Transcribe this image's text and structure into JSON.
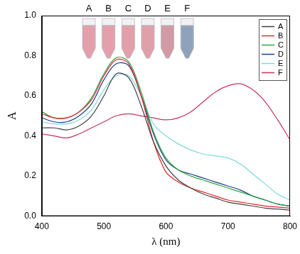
{
  "chart_data": {
    "type": "line",
    "x_label": "λ (nm)",
    "y_label": "A",
    "x": [
      400,
      420,
      440,
      460,
      480,
      500,
      520,
      540,
      560,
      580,
      600,
      620,
      640,
      660,
      680,
      700,
      720,
      740,
      760,
      780,
      800
    ],
    "series": [
      {
        "name": "A",
        "color": "#404040",
        "values": [
          0.44,
          0.44,
          0.43,
          0.45,
          0.5,
          0.6,
          0.71,
          0.69,
          0.55,
          0.37,
          0.25,
          0.18,
          0.14,
          0.11,
          0.09,
          0.07,
          0.06,
          0.05,
          0.04,
          0.035,
          0.03
        ]
      },
      {
        "name": "B",
        "color": "#e8262a",
        "values": [
          0.51,
          0.49,
          0.49,
          0.52,
          0.58,
          0.7,
          0.78,
          0.76,
          0.6,
          0.37,
          0.22,
          0.17,
          0.14,
          0.12,
          0.1,
          0.08,
          0.07,
          0.06,
          0.05,
          0.045,
          0.04
        ]
      },
      {
        "name": "C",
        "color": "#2aa640",
        "values": [
          0.52,
          0.49,
          0.49,
          0.52,
          0.59,
          0.71,
          0.79,
          0.77,
          0.62,
          0.42,
          0.29,
          0.23,
          0.2,
          0.18,
          0.16,
          0.14,
          0.12,
          0.1,
          0.08,
          0.06,
          0.05
        ]
      },
      {
        "name": "D",
        "color": "#1c3c8c",
        "values": [
          0.49,
          0.47,
          0.47,
          0.5,
          0.56,
          0.68,
          0.76,
          0.75,
          0.6,
          0.41,
          0.28,
          0.23,
          0.21,
          0.19,
          0.17,
          0.15,
          0.13,
          0.1,
          0.08,
          0.06,
          0.05
        ]
      },
      {
        "name": "E",
        "color": "#7fd8e0",
        "values": [
          0.47,
          0.46,
          0.46,
          0.48,
          0.53,
          0.63,
          0.7,
          0.7,
          0.6,
          0.46,
          0.4,
          0.36,
          0.33,
          0.31,
          0.3,
          0.29,
          0.26,
          0.21,
          0.16,
          0.11,
          0.08
        ]
      },
      {
        "name": "F",
        "color": "#c8345a",
        "values": [
          0.41,
          0.4,
          0.39,
          0.41,
          0.44,
          0.47,
          0.5,
          0.51,
          0.5,
          0.49,
          0.48,
          0.49,
          0.52,
          0.57,
          0.62,
          0.65,
          0.66,
          0.63,
          0.57,
          0.48,
          0.38
        ]
      }
    ],
    "annotations": [
      {
        "text": "A",
        "color": "#e3a0aa"
      },
      {
        "text": "B",
        "color": "#e3a0aa"
      },
      {
        "text": "C",
        "color": "#e3a0aa"
      },
      {
        "text": "D",
        "color": "#e0a0aa"
      },
      {
        "text": "E",
        "color": "#d39aa6"
      },
      {
        "text": "F",
        "color": "#8fa2bb"
      }
    ],
    "xlim": [
      400,
      800
    ],
    "xticks": [
      400,
      500,
      600,
      700,
      800
    ],
    "ylim": [
      0,
      1.0
    ],
    "yticks": [
      {
        "value": 0,
        "label": "0.0"
      },
      {
        "value": 0.2,
        "label": "0.2"
      },
      {
        "value": 0.4,
        "label": "0.4"
      },
      {
        "value": 0.6,
        "label": "0.6"
      },
      {
        "value": 0.8,
        "label": "0.8"
      },
      {
        "value": 1.0,
        "label": "1.0"
      }
    ],
    "grid": false,
    "legend": "upper right"
  }
}
